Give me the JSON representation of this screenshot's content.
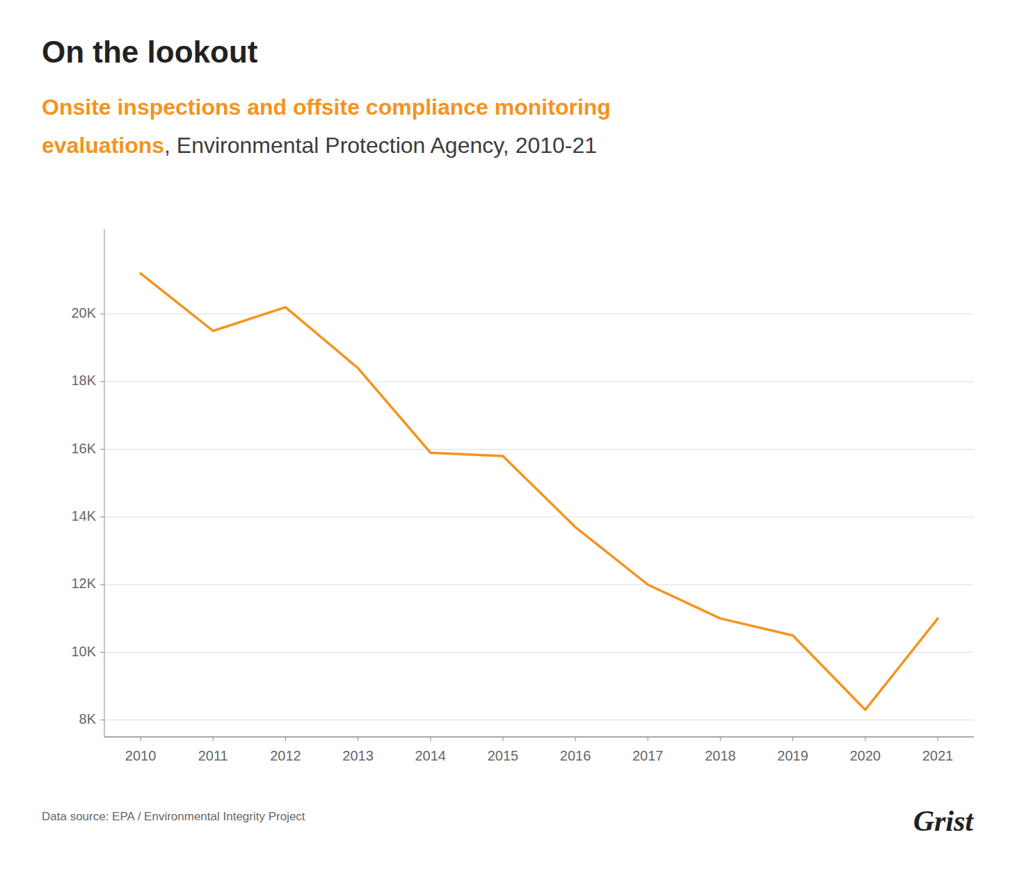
{
  "chart_data": {
    "type": "line",
    "title": "On the lookout",
    "subtitle": [
      "Onsite inspections and offsite compliance monitoring",
      "evaluations",
      ", Environmental Protection Agency, 2010-21"
    ],
    "annotations": [
      "Data source: EPA / Environmental Integrity Project",
      "Grist"
    ],
    "x": [
      2010,
      2011,
      2012,
      2013,
      2014,
      2015,
      2016,
      2017,
      2018,
      2019,
      2020,
      2021
    ],
    "values": [
      21200,
      19500,
      20200,
      18400,
      15900,
      15800,
      13700,
      12000,
      11000,
      10500,
      8300,
      11000
    ],
    "color": "#F5931E",
    "xlim": [
      2009.5,
      2021.5
    ],
    "xticks": [
      2010,
      2011,
      2012,
      2013,
      2014,
      2015,
      2016,
      2017,
      2018,
      2019,
      2020,
      2021
    ],
    "ylim": [
      7500,
      22500
    ],
    "yticks": [
      {
        "value": 8000,
        "label": "8K"
      },
      {
        "value": 10000,
        "label": "10K"
      },
      {
        "value": 12000,
        "label": "12K"
      },
      {
        "value": 14000,
        "label": "14K"
      },
      {
        "value": 16000,
        "label": "16K"
      },
      {
        "value": 18000,
        "label": "18K"
      },
      {
        "value": 20000,
        "label": "20K"
      }
    ],
    "grid": true
  }
}
